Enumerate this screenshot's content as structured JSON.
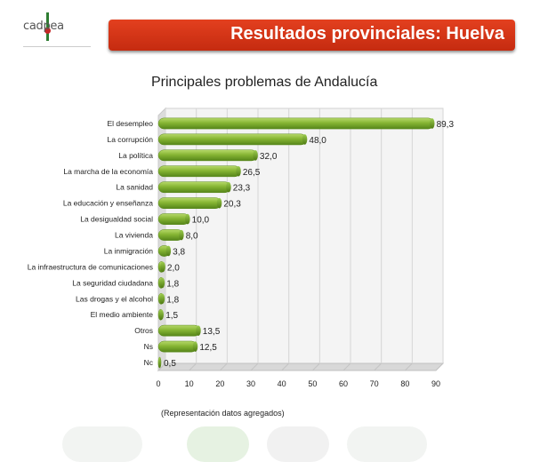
{
  "header": {
    "logo_text": "cadpea",
    "banner_title": "Resultados provinciales: Huelva"
  },
  "note": "(Representación datos agregados)",
  "colors": {
    "banner": "#d93a1a",
    "bar": "#7cab2d",
    "bar_dark": "#4e7a12"
  },
  "chart_data": {
    "type": "bar",
    "orientation": "horizontal",
    "title": "Principales problemas de Andalucía",
    "categories": [
      "El desempleo",
      "La corrupción",
      "La política",
      "La marcha de la economía",
      "La sanidad",
      "La educación y enseñanza",
      "La desigualdad social",
      "La vivienda",
      "La inmigración",
      "La infraestructura de comunicaciones",
      "La seguridad ciudadana",
      "Las drogas y el alcohol",
      "El medio ambiente",
      "Otros",
      "Ns",
      "Nc"
    ],
    "values": [
      89.3,
      48.0,
      32.0,
      26.5,
      23.3,
      20.3,
      10.0,
      8.0,
      3.8,
      2.0,
      1.8,
      1.8,
      1.5,
      13.5,
      12.5,
      0.5
    ],
    "value_labels": [
      "89,3",
      "48,0",
      "32,0",
      "26,5",
      "23,3",
      "20,3",
      "10,0",
      "8,0",
      "3,8",
      "2,0",
      "1,8",
      "1,8",
      "1,5",
      "13,5",
      "12,5",
      "0,5"
    ],
    "xlim": [
      0,
      90
    ],
    "xticks": [
      0,
      10,
      20,
      30,
      40,
      50,
      60,
      70,
      80,
      90
    ],
    "grid": true
  }
}
